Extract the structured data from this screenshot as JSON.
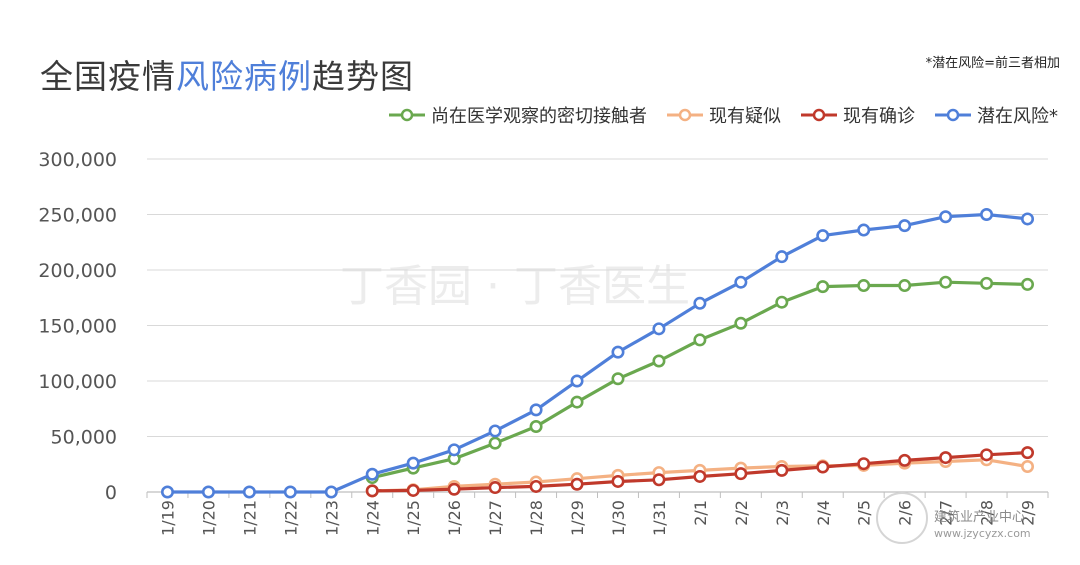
{
  "header": {
    "title_part1": "全国疫情",
    "title_part2": "风险病例",
    "title_part3": "趋势图",
    "note": "*潜在风险=前三者相加"
  },
  "watermark": {
    "center_text": "丁香园 · 丁香医生",
    "brand": "建筑业产业中心",
    "url": "www.jzycyzx.com"
  },
  "chart_data": {
    "type": "line",
    "title": "全国疫情风险病例趋势图",
    "xlabel": "",
    "ylabel": "",
    "ylim": [
      0,
      300000
    ],
    "yticks": [
      "0",
      "50,000",
      "100,000",
      "150,000",
      "200,000",
      "250,000",
      "300,000"
    ],
    "ytick_values": [
      0,
      50000,
      100000,
      150000,
      200000,
      250000,
      300000
    ],
    "grid": true,
    "legend_position": "top-right",
    "x": [
      "1/19",
      "1/20",
      "1/21",
      "1/22",
      "1/23",
      "1/24",
      "1/25",
      "1/26",
      "1/27",
      "1/28",
      "1/29",
      "1/30",
      "1/31",
      "2/1",
      "2/2",
      "2/3",
      "2/4",
      "2/5",
      "2/6",
      "2/7",
      "2/8",
      "2/9"
    ],
    "series": [
      {
        "name": "尚在医学观察的密切接触者",
        "color": "#6aa84f",
        "marker": "hollow",
        "values": [
          null,
          null,
          null,
          null,
          null,
          13000,
          21500,
          30000,
          44000,
          59000,
          81000,
          102000,
          118000,
          137000,
          152000,
          171000,
          185000,
          186000,
          186000,
          189000,
          188000,
          187000
        ]
      },
      {
        "name": "现有疑似",
        "color": "#f4b183",
        "marker": "hollow",
        "values": [
          null,
          null,
          null,
          null,
          null,
          1000,
          2000,
          5000,
          7000,
          9000,
          12000,
          15000,
          17500,
          19500,
          21500,
          23000,
          23500,
          24000,
          26000,
          27500,
          29000,
          23000
        ]
      },
      {
        "name": "现有确诊",
        "color": "#c0392b",
        "marker": "hollow",
        "values": [
          null,
          null,
          null,
          null,
          null,
          1000,
          1400,
          2500,
          4000,
          5000,
          7000,
          9500,
          11000,
          14000,
          16500,
          19500,
          22500,
          25500,
          28500,
          31000,
          33500,
          35500
        ]
      },
      {
        "name": "潜在风险*",
        "color": "#4f7fd9",
        "marker": "hollow",
        "values": [
          0,
          0,
          0,
          0,
          0,
          16000,
          26000,
          38000,
          55000,
          74000,
          100000,
          126000,
          147000,
          170000,
          189000,
          212000,
          231000,
          236000,
          240000,
          248000,
          250000,
          246000
        ]
      }
    ]
  }
}
